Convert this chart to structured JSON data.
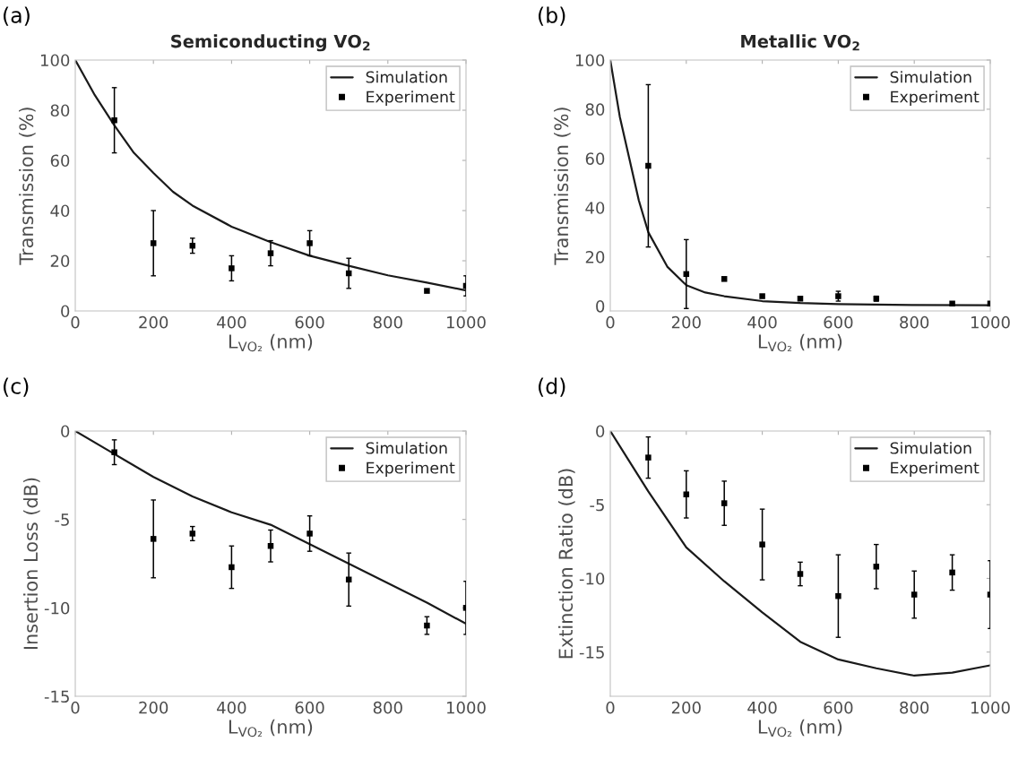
{
  "chart_data": [
    {
      "type": "line",
      "title": "Semiconducting VO$_{2}$",
      "xlabel": "L$_{VO₂}$ (nm)",
      "ylabel": "Transmission (%)",
      "annotations": [
        "(a)"
      ],
      "xlim": [
        0,
        1000
      ],
      "xticks": [
        0,
        200,
        400,
        600,
        800,
        1000
      ],
      "ylim": [
        0,
        100
      ],
      "yticks": [
        0,
        20,
        40,
        60,
        80,
        100
      ],
      "grid": false,
      "legend": "top right",
      "series": [
        {
          "name": "Simulation",
          "type": "line",
          "color": "#1a1a1a",
          "line_style": "solid",
          "x": [
            0,
            50,
            100,
            150,
            200,
            250,
            300,
            400,
            500,
            600,
            700,
            800,
            900,
            1000
          ],
          "values": [
            100,
            86,
            74,
            63,
            55,
            47.5,
            42,
            33.6,
            27.4,
            22,
            18,
            14.2,
            11.3,
            8.2
          ]
        },
        {
          "name": "Experiment",
          "type": "scatter",
          "color": "#000000",
          "marker": "square",
          "x": [
            100,
            200,
            300,
            400,
            500,
            600,
            700,
            900,
            1000
          ],
          "values": [
            76,
            27,
            26,
            17,
            23,
            27,
            15,
            8,
            10
          ],
          "errors": [
            [
              63,
              89
            ],
            [
              14,
              40
            ],
            [
              23,
              29
            ],
            [
              12,
              22
            ],
            [
              18,
              28
            ],
            [
              22,
              32
            ],
            [
              9,
              21
            ],
            null,
            [
              6,
              14
            ]
          ]
        }
      ]
    },
    {
      "type": "line",
      "title": "Metallic VO$_{2}$",
      "xlabel": "L$_{VO₂}$ (nm)",
      "ylabel": "Transmission (%)",
      "annotations": [
        "(b)"
      ],
      "xlim": [
        0,
        1000
      ],
      "xticks": [
        0,
        200,
        400,
        600,
        800,
        1000
      ],
      "ylim": [
        -2,
        100
      ],
      "yticks": [
        0,
        20,
        40,
        60,
        80,
        100
      ],
      "grid": false,
      "legend": "top right",
      "series": [
        {
          "name": "Simulation",
          "type": "line",
          "color": "#1a1a1a",
          "line_style": "solid",
          "x": [
            0,
            25,
            50,
            75,
            100,
            150,
            200,
            250,
            300,
            400,
            500,
            600,
            800,
            1000
          ],
          "values": [
            100,
            77,
            60,
            43,
            30,
            16,
            8.5,
            5.5,
            4,
            2,
            1.2,
            0.8,
            0.4,
            0.3
          ]
        },
        {
          "name": "Experiment",
          "type": "scatter",
          "color": "#000000",
          "marker": "square",
          "x": [
            100,
            200,
            300,
            400,
            500,
            600,
            700,
            900,
            1000
          ],
          "values": [
            57,
            13,
            11,
            4,
            3,
            4,
            3,
            1,
            1
          ],
          "errors": [
            [
              24,
              90
            ],
            [
              -1,
              27
            ],
            null,
            null,
            null,
            [
              2,
              6
            ],
            [
              2,
              4
            ],
            null,
            null
          ]
        }
      ]
    },
    {
      "type": "line",
      "xlabel": "L$_{VO₂}$ (nm)",
      "ylabel": "Insertion Loss (dB)",
      "annotations": [
        "(c)"
      ],
      "xlim": [
        0,
        1000
      ],
      "xticks": [
        0,
        200,
        400,
        600,
        800,
        1000
      ],
      "ylim": [
        -15,
        0
      ],
      "yticks": [
        -15,
        -10,
        -5,
        0
      ],
      "grid": false,
      "legend": "top right",
      "series": [
        {
          "name": "Simulation",
          "type": "line",
          "color": "#1a1a1a",
          "line_style": "solid",
          "x": [
            0,
            100,
            200,
            300,
            400,
            500,
            600,
            700,
            800,
            900,
            1000
          ],
          "values": [
            0,
            -1.3,
            -2.6,
            -3.7,
            -4.6,
            -5.3,
            -6.4,
            -7.5,
            -8.6,
            -9.7,
            -10.9
          ]
        },
        {
          "name": "Experiment",
          "type": "scatter",
          "color": "#000000",
          "marker": "square",
          "x": [
            100,
            200,
            300,
            400,
            500,
            600,
            700,
            900,
            1000
          ],
          "values": [
            -1.2,
            -6.1,
            -5.8,
            -7.7,
            -6.5,
            -5.8,
            -8.4,
            -11,
            -10
          ],
          "errors": [
            [
              -1.9,
              -0.5
            ],
            [
              -8.3,
              -3.9
            ],
            [
              -6.2,
              -5.4
            ],
            [
              -8.9,
              -6.5
            ],
            [
              -7.4,
              -5.6
            ],
            [
              -6.8,
              -4.8
            ],
            [
              -9.9,
              -6.9
            ],
            [
              -11.5,
              -10.5
            ],
            [
              -11.5,
              -8.5
            ]
          ]
        }
      ]
    },
    {
      "type": "line",
      "xlabel": "L$_{VO₂}$ (nm)",
      "ylabel": "Extinction Ratio (dB)",
      "annotations": [
        "(d)"
      ],
      "xlim": [
        0,
        1000
      ],
      "xticks": [
        0,
        200,
        400,
        600,
        800,
        1000
      ],
      "ylim": [
        -18,
        0
      ],
      "yticks": [
        -15,
        -10,
        -5,
        0
      ],
      "grid": false,
      "legend": "top right",
      "series": [
        {
          "name": "Simulation",
          "type": "line",
          "color": "#1a1a1a",
          "line_style": "solid",
          "x": [
            0,
            100,
            200,
            300,
            400,
            500,
            600,
            700,
            800,
            900,
            1000
          ],
          "values": [
            0,
            -4.1,
            -7.9,
            -10.2,
            -12.3,
            -14.3,
            -15.5,
            -16.1,
            -16.6,
            -16.4,
            -15.9
          ]
        },
        {
          "name": "Experiment",
          "type": "scatter",
          "color": "#000000",
          "marker": "square",
          "x": [
            100,
            200,
            300,
            400,
            500,
            600,
            700,
            800,
            900,
            1000
          ],
          "values": [
            -1.8,
            -4.3,
            -4.9,
            -7.7,
            -9.7,
            -11.2,
            -9.2,
            -11.1,
            -9.6,
            -11.1
          ],
          "errors": [
            [
              -3.2,
              -0.4
            ],
            [
              -5.9,
              -2.7
            ],
            [
              -6.4,
              -3.4
            ],
            [
              -10.1,
              -5.3
            ],
            [
              -10.5,
              -8.9
            ],
            [
              -14,
              -8.4
            ],
            [
              -10.7,
              -7.7
            ],
            [
              -12.7,
              -9.5
            ],
            [
              -10.8,
              -8.4
            ],
            [
              -13.4,
              -8.8
            ]
          ]
        }
      ]
    }
  ]
}
